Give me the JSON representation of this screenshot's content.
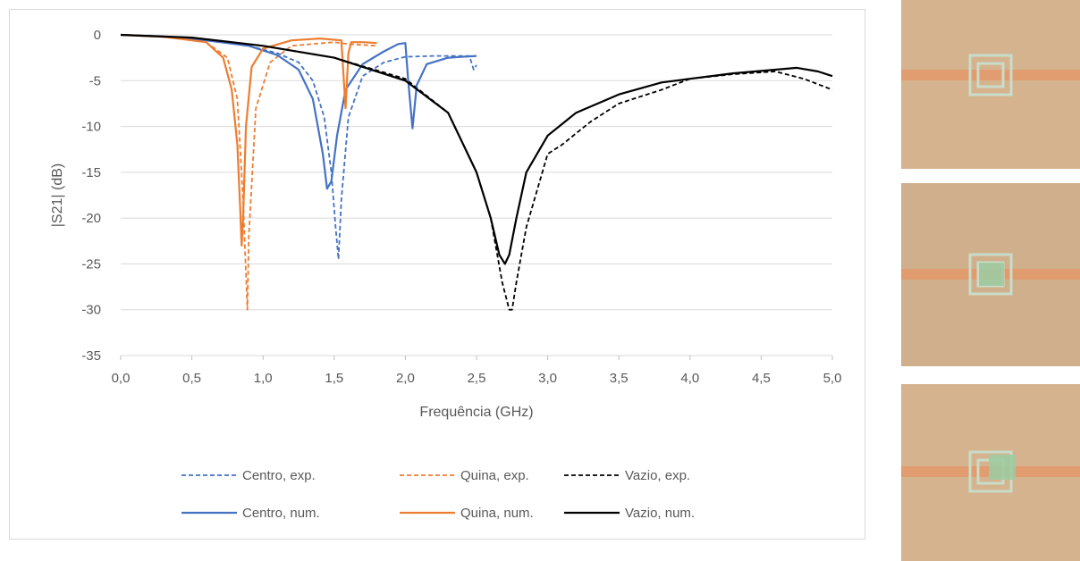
{
  "chart_data": {
    "type": "line",
    "title": "",
    "xlabel": "Frequência (GHz)",
    "ylabel": "|S21| (dB)",
    "xlim": [
      0,
      5
    ],
    "ylim": [
      -35,
      0
    ],
    "xticks": [
      "0,0",
      "0,5",
      "1,0",
      "1,5",
      "2,0",
      "2,5",
      "3,0",
      "3,5",
      "4,0",
      "4,5",
      "5,0"
    ],
    "yticks": [
      "0",
      "-5",
      "-10",
      "-15",
      "-20",
      "-25",
      "-30",
      "-35"
    ],
    "grid": "horizontal",
    "legend_position": "bottom",
    "series": [
      {
        "name": "Centro, exp.",
        "color": "#4472c4",
        "style": "dashed",
        "x": [
          0,
          0.3,
          0.6,
          0.9,
          1.1,
          1.25,
          1.35,
          1.43,
          1.48,
          1.51,
          1.53,
          1.55,
          1.6,
          1.7,
          1.85,
          2.0,
          2.2,
          2.45,
          2.48,
          2.5
        ],
        "y": [
          0,
          -0.2,
          -0.6,
          -1.2,
          -2.0,
          -3.0,
          -5.0,
          -9.0,
          -15.0,
          -21.0,
          -24.5,
          -18.0,
          -9.0,
          -4.5,
          -3.0,
          -2.4,
          -2.3,
          -2.3,
          -3.8,
          -3.3
        ]
      },
      {
        "name": "Quina, exp.",
        "color": "#ed7d31",
        "style": "dashed",
        "x": [
          0,
          0.3,
          0.6,
          0.75,
          0.82,
          0.86,
          0.88,
          0.89,
          0.9,
          0.95,
          1.05,
          1.2,
          1.5,
          1.6,
          1.7,
          1.8
        ],
        "y": [
          0,
          -0.2,
          -0.8,
          -2.5,
          -7.0,
          -18.0,
          -26.0,
          -30.0,
          -22.0,
          -8.0,
          -3.0,
          -1.2,
          -0.8,
          -1.0,
          -1.1,
          -1.2
        ]
      },
      {
        "name": "Vazio, exp.",
        "color": "#000000",
        "style": "dashed",
        "x": [
          0,
          0.5,
          1.0,
          1.5,
          2.0,
          2.3,
          2.5,
          2.6,
          2.68,
          2.73,
          2.75,
          2.78,
          2.85,
          3.0,
          3.1,
          3.3,
          3.5,
          3.8,
          4.0,
          4.3,
          4.6,
          4.8,
          5.0
        ],
        "y": [
          0,
          -0.3,
          -1.2,
          -2.5,
          -4.8,
          -8.5,
          -15.0,
          -20.0,
          -27.0,
          -30.0,
          -30.0,
          -27.0,
          -21.0,
          -13.0,
          -12.0,
          -9.5,
          -7.5,
          -6.0,
          -4.8,
          -4.3,
          -4.0,
          -4.8,
          -6.0
        ]
      },
      {
        "name": "Centro, num.",
        "color": "#4472c4",
        "style": "solid",
        "x": [
          0,
          0.3,
          0.6,
          0.9,
          1.1,
          1.25,
          1.35,
          1.42,
          1.45,
          1.48,
          1.52,
          1.58,
          1.7,
          1.85,
          1.95,
          2.0,
          2.02,
          2.05,
          2.08,
          2.15,
          2.3,
          2.5
        ],
        "y": [
          0,
          -0.2,
          -0.6,
          -1.2,
          -2.2,
          -3.8,
          -7.0,
          -13.0,
          -16.8,
          -16.0,
          -11.0,
          -6.0,
          -3.2,
          -1.8,
          -1.0,
          -0.9,
          -5.0,
          -10.2,
          -5.5,
          -3.2,
          -2.5,
          -2.3
        ]
      },
      {
        "name": "Quina, num.",
        "color": "#ed7d31",
        "style": "solid",
        "x": [
          0,
          0.3,
          0.6,
          0.72,
          0.78,
          0.82,
          0.84,
          0.85,
          0.86,
          0.88,
          0.92,
          1.0,
          1.2,
          1.4,
          1.55,
          1.58,
          1.6,
          1.62,
          1.7,
          1.8
        ],
        "y": [
          0,
          -0.2,
          -0.8,
          -2.5,
          -6.0,
          -12.0,
          -19.0,
          -23.0,
          -20.0,
          -10.0,
          -3.5,
          -1.5,
          -0.6,
          -0.4,
          -0.6,
          -8.0,
          -2.0,
          -0.8,
          -0.8,
          -0.9
        ]
      },
      {
        "name": "Vazio, num.",
        "color": "#000000",
        "style": "solid",
        "x": [
          0,
          0.5,
          1.0,
          1.5,
          2.0,
          2.3,
          2.5,
          2.6,
          2.66,
          2.7,
          2.73,
          2.78,
          2.85,
          3.0,
          3.2,
          3.5,
          3.8,
          4.0,
          4.3,
          4.6,
          4.75,
          4.9,
          5.0
        ],
        "y": [
          0,
          -0.3,
          -1.2,
          -2.5,
          -5.0,
          -8.5,
          -15.0,
          -20.0,
          -24.0,
          -25.0,
          -24.0,
          -20.0,
          -15.0,
          -11.0,
          -8.5,
          -6.5,
          -5.2,
          -4.8,
          -4.2,
          -3.8,
          -3.6,
          -4.0,
          -4.5
        ]
      }
    ]
  },
  "thumbnails": [
    {
      "variant": "empty",
      "substrate_color": "#d4b38e",
      "line_color": "#e3996a",
      "resonator_color": "#c9dcc9",
      "sample_color": ""
    },
    {
      "variant": "center",
      "substrate_color": "#d0b08c",
      "line_color": "#e3996a",
      "resonator_color": "#c9dcc9",
      "sample_color": "#9fcba1"
    },
    {
      "variant": "corner",
      "substrate_color": "#d4b38e",
      "line_color": "#e3996a",
      "resonator_color": "#c9dcc9",
      "sample_color": "#9fcba1"
    }
  ]
}
